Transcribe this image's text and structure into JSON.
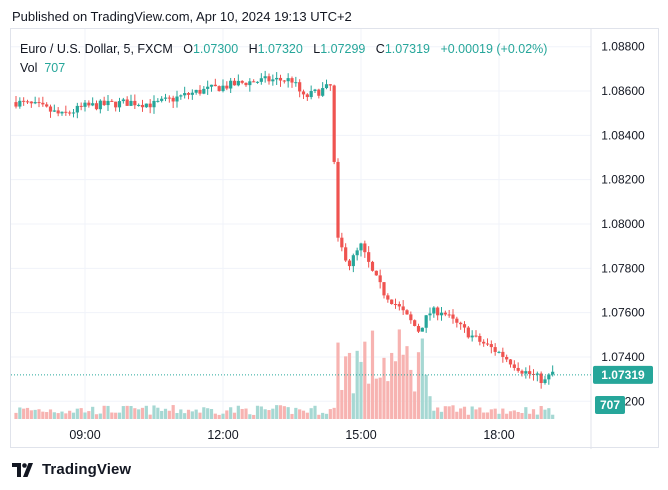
{
  "header": {
    "published": "Published on TradingView.com, Apr 10, 2024 19:13 UTC+2"
  },
  "legend": {
    "symbol": "Euro / U.S. Dollar, 5, FXCM",
    "open_label": "O",
    "open": "1.07300",
    "high_label": "H",
    "high": "1.07320",
    "low_label": "L",
    "low": "1.07299",
    "close_label": "C",
    "close": "1.07319",
    "change": "+0.00019 (+0.02%)",
    "vol_label": "Vol",
    "vol": "707"
  },
  "footer": {
    "brand": "TradingView"
  },
  "colors": {
    "up": "#26a69a",
    "down": "#ef5350",
    "grid": "#f0f3fa",
    "up_vol": "#a6d8d3",
    "down_vol": "#f7b3b1",
    "text": "#131722"
  },
  "chart_data": {
    "type": "candlestick",
    "symbol": "EURUSD",
    "timeframe": "5",
    "x_ticks": [
      "09:00",
      "12:00",
      "15:00",
      "18:00"
    ],
    "y_ticks": [
      "1.07200",
      "1.07400",
      "1.07600",
      "1.07800",
      "1.08000",
      "1.08200",
      "1.08400",
      "1.08600",
      "1.08800"
    ],
    "ylim": [
      1.0712,
      1.0888
    ],
    "last_price_label": "1.07319",
    "last_volume_label": "707",
    "grid": true,
    "close_path": [
      [
        "07:30",
        1.0855
      ],
      [
        "08:00",
        1.0853
      ],
      [
        "08:30",
        1.0849
      ],
      [
        "09:00",
        1.0853
      ],
      [
        "09:30",
        1.0854
      ],
      [
        "10:00",
        1.0855
      ],
      [
        "10:30",
        1.0854
      ],
      [
        "11:00",
        1.0857
      ],
      [
        "11:30",
        1.086
      ],
      [
        "12:00",
        1.0862
      ],
      [
        "12:30",
        1.0864
      ],
      [
        "13:00",
        1.0865
      ],
      [
        "13:30",
        1.0865
      ],
      [
        "13:45",
        1.0857
      ],
      [
        "14:20",
        1.0862
      ],
      [
        "14:30",
        1.0792
      ],
      [
        "14:45",
        1.0782
      ],
      [
        "15:00",
        1.079
      ],
      [
        "15:15",
        1.0778
      ],
      [
        "15:30",
        1.0769
      ],
      [
        "15:45",
        1.0764
      ],
      [
        "16:00",
        1.0758
      ],
      [
        "16:15",
        1.0752
      ],
      [
        "16:30",
        1.076
      ],
      [
        "16:45",
        1.0761
      ],
      [
        "17:00",
        1.0756
      ],
      [
        "17:30",
        1.0748
      ],
      [
        "18:00",
        1.0742
      ],
      [
        "18:30",
        1.0734
      ],
      [
        "19:00",
        1.0729
      ],
      [
        "19:10",
        1.0733
      ],
      [
        "19:13",
        1.07319
      ]
    ]
  }
}
